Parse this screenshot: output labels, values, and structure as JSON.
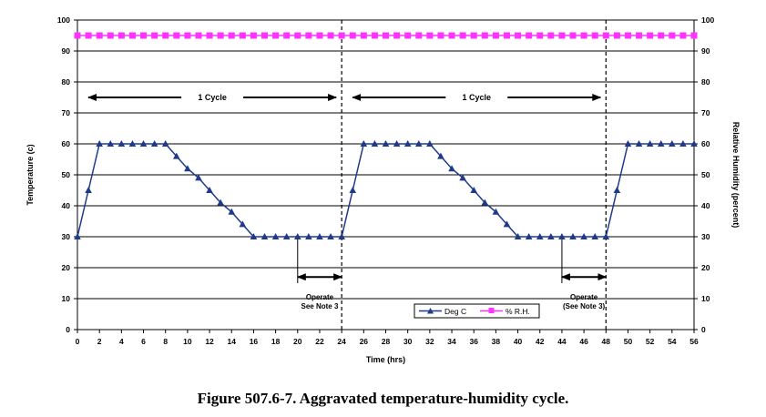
{
  "figure_caption": "Figure 507.6-7.  Aggravated temperature-humidity cycle.",
  "chart_data": {
    "type": "line",
    "title": "",
    "xlabel": "Time (hrs)",
    "ylabel": "Temperature (c)",
    "y2label": "Relative Humidity (percent)",
    "xlim": [
      0,
      56
    ],
    "ylim": [
      0,
      100
    ],
    "y2lim": [
      0,
      100
    ],
    "x_ticks": [
      0,
      2,
      4,
      6,
      8,
      10,
      12,
      14,
      16,
      18,
      20,
      22,
      24,
      26,
      28,
      30,
      32,
      34,
      36,
      38,
      40,
      42,
      44,
      46,
      48,
      50,
      52,
      54,
      56
    ],
    "y_ticks": [
      0,
      10,
      20,
      30,
      40,
      50,
      60,
      70,
      80,
      90,
      100
    ],
    "grid": "horizontal",
    "legend_position": "bottom-right",
    "colors": {
      "temp": "#1f3a8a",
      "rh": "#ff33ff",
      "grid": "#000000"
    },
    "series": [
      {
        "name": "Deg C",
        "marker": "triangle",
        "x": [
          0,
          1,
          2,
          3,
          4,
          5,
          6,
          7,
          8,
          9,
          10,
          11,
          12,
          13,
          14,
          15,
          16,
          17,
          18,
          19,
          20,
          21,
          22,
          23,
          24,
          25,
          26,
          27,
          28,
          29,
          30,
          31,
          32,
          33,
          34,
          35,
          36,
          37,
          38,
          39,
          40,
          41,
          42,
          43,
          44,
          45,
          46,
          47,
          48,
          49,
          50,
          51,
          52,
          53,
          54,
          55,
          56
        ],
        "values": [
          30,
          45,
          60,
          60,
          60,
          60,
          60,
          60,
          60,
          56,
          52,
          49,
          45,
          41,
          38,
          34,
          30,
          30,
          30,
          30,
          30,
          30,
          30,
          30,
          30,
          45,
          60,
          60,
          60,
          60,
          60,
          60,
          60,
          56,
          52,
          49,
          45,
          41,
          38,
          34,
          30,
          30,
          30,
          30,
          30,
          30,
          30,
          30,
          30,
          45,
          60,
          60,
          60,
          60,
          60,
          60,
          60
        ]
      },
      {
        "name": "% R.H.",
        "marker": "square",
        "x": [
          0,
          1,
          2,
          3,
          4,
          5,
          6,
          7,
          8,
          9,
          10,
          11,
          12,
          13,
          14,
          15,
          16,
          17,
          18,
          19,
          20,
          21,
          22,
          23,
          24,
          25,
          26,
          27,
          28,
          29,
          30,
          31,
          32,
          33,
          34,
          35,
          36,
          37,
          38,
          39,
          40,
          41,
          42,
          43,
          44,
          45,
          46,
          47,
          48,
          49,
          50,
          51,
          52,
          53,
          54,
          55,
          56
        ],
        "values": [
          95,
          95,
          95,
          95,
          95,
          95,
          95,
          95,
          95,
          95,
          95,
          95,
          95,
          95,
          95,
          95,
          95,
          95,
          95,
          95,
          95,
          95,
          95,
          95,
          95,
          95,
          95,
          95,
          95,
          95,
          95,
          95,
          95,
          95,
          95,
          95,
          95,
          95,
          95,
          95,
          95,
          95,
          95,
          95,
          95,
          95,
          95,
          95,
          95,
          95,
          95,
          95,
          95,
          95,
          95,
          95,
          95
        ]
      }
    ],
    "vertical_dashed_lines_at_x": [
      24,
      48
    ],
    "cycle_annotations": [
      {
        "label": "1 Cycle",
        "from_x": 1,
        "to_x": 23.5,
        "y": 75
      },
      {
        "label": "1 Cycle",
        "from_x": 25,
        "to_x": 47.5,
        "y": 75
      }
    ],
    "operate_annotations": [
      {
        "line1": "Operate",
        "line2": "See Note 3",
        "from_x": 20,
        "to_x": 24,
        "y": 17
      },
      {
        "line1": "Operate",
        "line2": "(See Note 3)",
        "from_x": 44,
        "to_x": 48,
        "y": 17
      }
    ]
  }
}
